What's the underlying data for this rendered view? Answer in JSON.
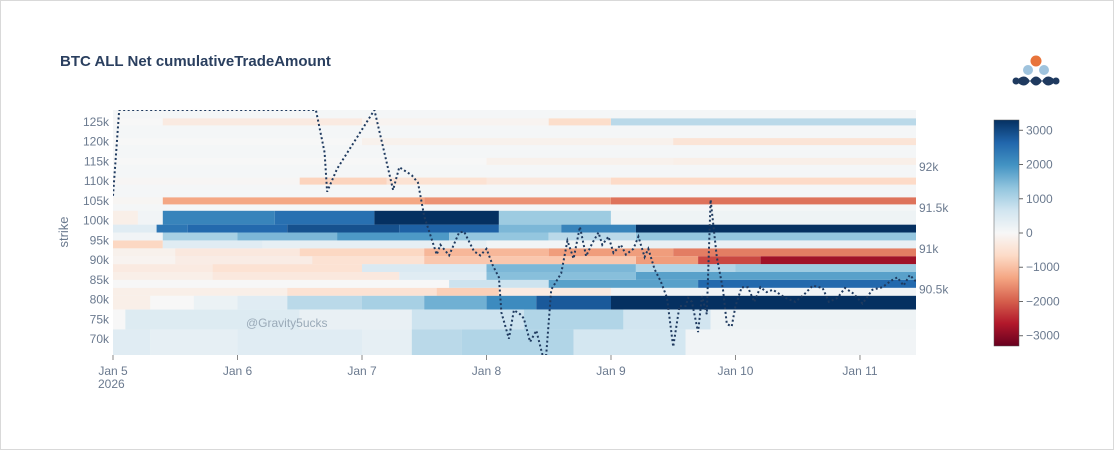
{
  "chart_data": {
    "type": "heatmap",
    "title": "BTC ALL Net cumulativeTradeAmount",
    "ylabel": "strike",
    "x_ticks": [
      "Jan 5",
      "Jan 6",
      "Jan 7",
      "Jan 8",
      "Jan 9",
      "Jan 10",
      "Jan 11"
    ],
    "x_year": "2026",
    "x_range_days": [
      0,
      6.45
    ],
    "y_ticks": [
      "70k",
      "75k",
      "80k",
      "85k",
      "90k",
      "95k",
      "100k",
      "105k",
      "110k",
      "115k",
      "120k",
      "125k"
    ],
    "y_range": [
      66000,
      128000
    ],
    "strikes": [
      70000,
      75000,
      80000,
      82000,
      84000,
      86000,
      88000,
      90000,
      92000,
      94000,
      96000,
      98000,
      100000,
      105000,
      110000,
      115000,
      120000,
      125000
    ],
    "colorbar": {
      "min": -3300,
      "max": 3300,
      "tick_values": [
        3000,
        2000,
        1000,
        0,
        -1000,
        -2000,
        -3000
      ],
      "tick_labels": [
        "3000",
        "2000",
        "1000",
        "0",
        "−1000",
        "−2000",
        "−3000"
      ],
      "scale": [
        "#67001f",
        "#b2182b",
        "#d6604d",
        "#f4a582",
        "#fddbc7",
        "#f7f7f7",
        "#d1e5f0",
        "#92c5de",
        "#4393c3",
        "#2166ac",
        "#053061"
      ]
    },
    "price_axis": {
      "ticks": [
        "92k",
        "91.5k",
        "91k",
        "90.5k"
      ],
      "range": [
        89700,
        92700
      ]
    },
    "price_series": {
      "name": "",
      "style": "dotted",
      "color": "#1f3a5f",
      "t": [
        0.0,
        0.05,
        1.63,
        1.7,
        1.72,
        1.8,
        1.85,
        2.1,
        2.25,
        2.3,
        2.4,
        2.45,
        2.5,
        2.6,
        2.63,
        2.7,
        2.78,
        2.82,
        2.9,
        2.95,
        3.0,
        3.05,
        3.1,
        3.12,
        3.18,
        3.22,
        3.27,
        3.3,
        3.35,
        3.4,
        3.45,
        3.48,
        3.52,
        3.6,
        3.65,
        3.7,
        3.75,
        3.8,
        3.85,
        3.9,
        3.93,
        3.98,
        4.02,
        4.08,
        4.12,
        4.18,
        4.22,
        4.27,
        4.3,
        4.35,
        4.4,
        4.45,
        4.5,
        4.55,
        4.6,
        4.62,
        4.65,
        4.7,
        4.73,
        4.77,
        4.8,
        4.85,
        4.9,
        4.93,
        4.97,
        5.0,
        5.05,
        5.1,
        5.15,
        5.2,
        5.25,
        5.3,
        5.4,
        5.48,
        5.55,
        5.62,
        5.7,
        5.75,
        5.82,
        5.88,
        5.95,
        6.02,
        6.1,
        6.18,
        6.25,
        6.3,
        6.35,
        6.4,
        6.45
      ],
      "v": [
        91650,
        92700,
        92700,
        92180,
        91700,
        91980,
        92100,
        92700,
        91720,
        92000,
        91900,
        91810,
        91400,
        90930,
        91050,
        90920,
        91200,
        91210,
        90970,
        90920,
        91000,
        90800,
        90650,
        90220,
        89900,
        90250,
        90200,
        90150,
        89860,
        90000,
        89700,
        89700,
        90500,
        90700,
        91100,
        90880,
        91270,
        90910,
        91070,
        91200,
        91050,
        91150,
        90950,
        91050,
        90930,
        91000,
        91150,
        90900,
        91000,
        90750,
        90600,
        90400,
        89800,
        90300,
        90300,
        90400,
        90350,
        89980,
        90420,
        90200,
        91600,
        90900,
        90500,
        90080,
        90050,
        90300,
        90530,
        90530,
        90350,
        90530,
        90470,
        90500,
        90400,
        90350,
        90440,
        90550,
        90520,
        90350,
        90400,
        90520,
        90450,
        90330,
        90500,
        90530,
        90610,
        90650,
        90550,
        90680,
        90600
      ]
    },
    "heatmap_rows": [
      {
        "strike": 70000,
        "segments": [
          [
            0.0,
            0.3,
            400
          ],
          [
            0.3,
            1.0,
            300
          ],
          [
            1.0,
            2.0,
            400
          ],
          [
            2.0,
            2.4,
            300
          ],
          [
            2.4,
            2.8,
            900
          ],
          [
            2.8,
            3.7,
            1000
          ],
          [
            3.7,
            4.6,
            600
          ],
          [
            4.6,
            6.45,
            100
          ]
        ]
      },
      {
        "strike": 75000,
        "segments": [
          [
            0.0,
            0.1,
            0
          ],
          [
            0.1,
            1.5,
            450
          ],
          [
            1.5,
            2.4,
            250
          ],
          [
            2.4,
            3.3,
            700
          ],
          [
            3.3,
            4.1,
            1000
          ],
          [
            4.1,
            4.8,
            650
          ],
          [
            4.8,
            6.45,
            150
          ]
        ]
      },
      {
        "strike": 80000,
        "segments": [
          [
            0.0,
            0.3,
            -200
          ],
          [
            0.3,
            0.65,
            0
          ],
          [
            0.65,
            1.0,
            200
          ],
          [
            1.0,
            1.4,
            400
          ],
          [
            1.4,
            2.0,
            900
          ],
          [
            2.0,
            2.5,
            1100
          ],
          [
            2.5,
            3.0,
            1600
          ],
          [
            3.0,
            3.4,
            2100
          ],
          [
            3.4,
            4.0,
            2800
          ],
          [
            4.0,
            6.45,
            3300
          ]
        ]
      },
      {
        "strike": 82000,
        "segments": [
          [
            0.0,
            1.4,
            -200
          ],
          [
            1.4,
            2.6,
            -500
          ],
          [
            2.6,
            3.1,
            -800
          ],
          [
            3.1,
            4.0,
            -300
          ],
          [
            4.0,
            6.45,
            100
          ]
        ]
      },
      {
        "strike": 84000,
        "segments": [
          [
            0.0,
            2.7,
            0
          ],
          [
            2.7,
            3.5,
            700
          ],
          [
            3.5,
            4.7,
            1800
          ],
          [
            4.7,
            6.45,
            2600
          ]
        ]
      },
      {
        "strike": 86000,
        "segments": [
          [
            0.0,
            0.8,
            -200
          ],
          [
            0.8,
            2.3,
            -350
          ],
          [
            2.3,
            3.0,
            400
          ],
          [
            3.0,
            4.2,
            1400
          ],
          [
            4.2,
            6.45,
            1800
          ]
        ]
      },
      {
        "strike": 88000,
        "segments": [
          [
            0.0,
            0.8,
            -300
          ],
          [
            0.8,
            2.0,
            -500
          ],
          [
            2.0,
            3.0,
            500
          ],
          [
            3.0,
            4.2,
            1500
          ],
          [
            4.2,
            5.0,
            1000
          ],
          [
            5.0,
            6.45,
            1200
          ]
        ]
      },
      {
        "strike": 90000,
        "segments": [
          [
            0.0,
            0.5,
            -100
          ],
          [
            0.5,
            1.6,
            -250
          ],
          [
            1.6,
            2.5,
            -500
          ],
          [
            2.5,
            4.2,
            -900
          ],
          [
            4.2,
            4.7,
            -1400
          ],
          [
            4.7,
            5.2,
            -2200
          ],
          [
            5.2,
            6.45,
            -2800
          ]
        ]
      },
      {
        "strike": 92000,
        "segments": [
          [
            0.0,
            0.5,
            -150
          ],
          [
            0.5,
            1.5,
            -350
          ],
          [
            1.5,
            2.5,
            -700
          ],
          [
            2.5,
            3.5,
            -1100
          ],
          [
            3.5,
            4.5,
            -1400
          ],
          [
            4.5,
            6.45,
            -1700
          ]
        ]
      },
      {
        "strike": 94000,
        "segments": [
          [
            0.0,
            0.4,
            -700
          ],
          [
            0.4,
            1.2,
            400
          ],
          [
            1.2,
            2.0,
            300
          ],
          [
            2.0,
            3.0,
            300
          ],
          [
            3.0,
            4.2,
            100
          ],
          [
            4.2,
            6.45,
            250
          ]
        ]
      },
      {
        "strike": 96000,
        "segments": [
          [
            0.0,
            0.4,
            100
          ],
          [
            0.4,
            1.0,
            1100
          ],
          [
            1.0,
            1.8,
            1500
          ],
          [
            1.8,
            2.7,
            1900
          ],
          [
            2.7,
            3.5,
            1300
          ],
          [
            3.5,
            4.2,
            900
          ],
          [
            4.2,
            6.45,
            1300
          ]
        ]
      },
      {
        "strike": 98000,
        "segments": [
          [
            0.0,
            0.35,
            400
          ],
          [
            0.35,
            0.6,
            2400
          ],
          [
            0.6,
            1.4,
            2600
          ],
          [
            1.4,
            2.3,
            2900
          ],
          [
            2.3,
            3.1,
            2700
          ],
          [
            3.1,
            3.6,
            1500
          ],
          [
            3.6,
            4.2,
            2200
          ],
          [
            4.2,
            6.45,
            3300
          ]
        ]
      },
      {
        "strike": 100000,
        "segments": [
          [
            0.0,
            0.2,
            -200
          ],
          [
            0.2,
            0.4,
            100
          ],
          [
            0.4,
            1.3,
            2200
          ],
          [
            1.3,
            2.1,
            2500
          ],
          [
            2.1,
            3.1,
            3300
          ],
          [
            3.1,
            4.0,
            1200
          ],
          [
            4.0,
            6.45,
            150
          ]
        ]
      },
      {
        "strike": 105000,
        "segments": [
          [
            0.0,
            0.4,
            -50
          ],
          [
            0.4,
            2.5,
            -1300
          ],
          [
            2.5,
            4.0,
            -1500
          ],
          [
            4.0,
            6.45,
            -1800
          ]
        ]
      },
      {
        "strike": 110000,
        "segments": [
          [
            0.0,
            1.5,
            -40
          ],
          [
            1.5,
            2.2,
            -750
          ],
          [
            2.2,
            3.0,
            -500
          ],
          [
            3.0,
            4.0,
            -350
          ],
          [
            4.0,
            6.45,
            -650
          ]
        ]
      },
      {
        "strike": 115000,
        "segments": [
          [
            0.0,
            3.0,
            0
          ],
          [
            3.0,
            4.5,
            -150
          ],
          [
            4.5,
            6.45,
            -200
          ]
        ]
      },
      {
        "strike": 120000,
        "segments": [
          [
            0.0,
            2.0,
            0
          ],
          [
            2.0,
            4.5,
            -150
          ],
          [
            4.5,
            6.45,
            -450
          ]
        ]
      },
      {
        "strike": 125000,
        "segments": [
          [
            0.0,
            0.4,
            0
          ],
          [
            0.4,
            2.0,
            -300
          ],
          [
            2.0,
            3.5,
            -100
          ],
          [
            3.5,
            4.0,
            -600
          ],
          [
            4.0,
            6.45,
            900
          ]
        ]
      }
    ],
    "annotation": "@Gravity5ucks"
  }
}
